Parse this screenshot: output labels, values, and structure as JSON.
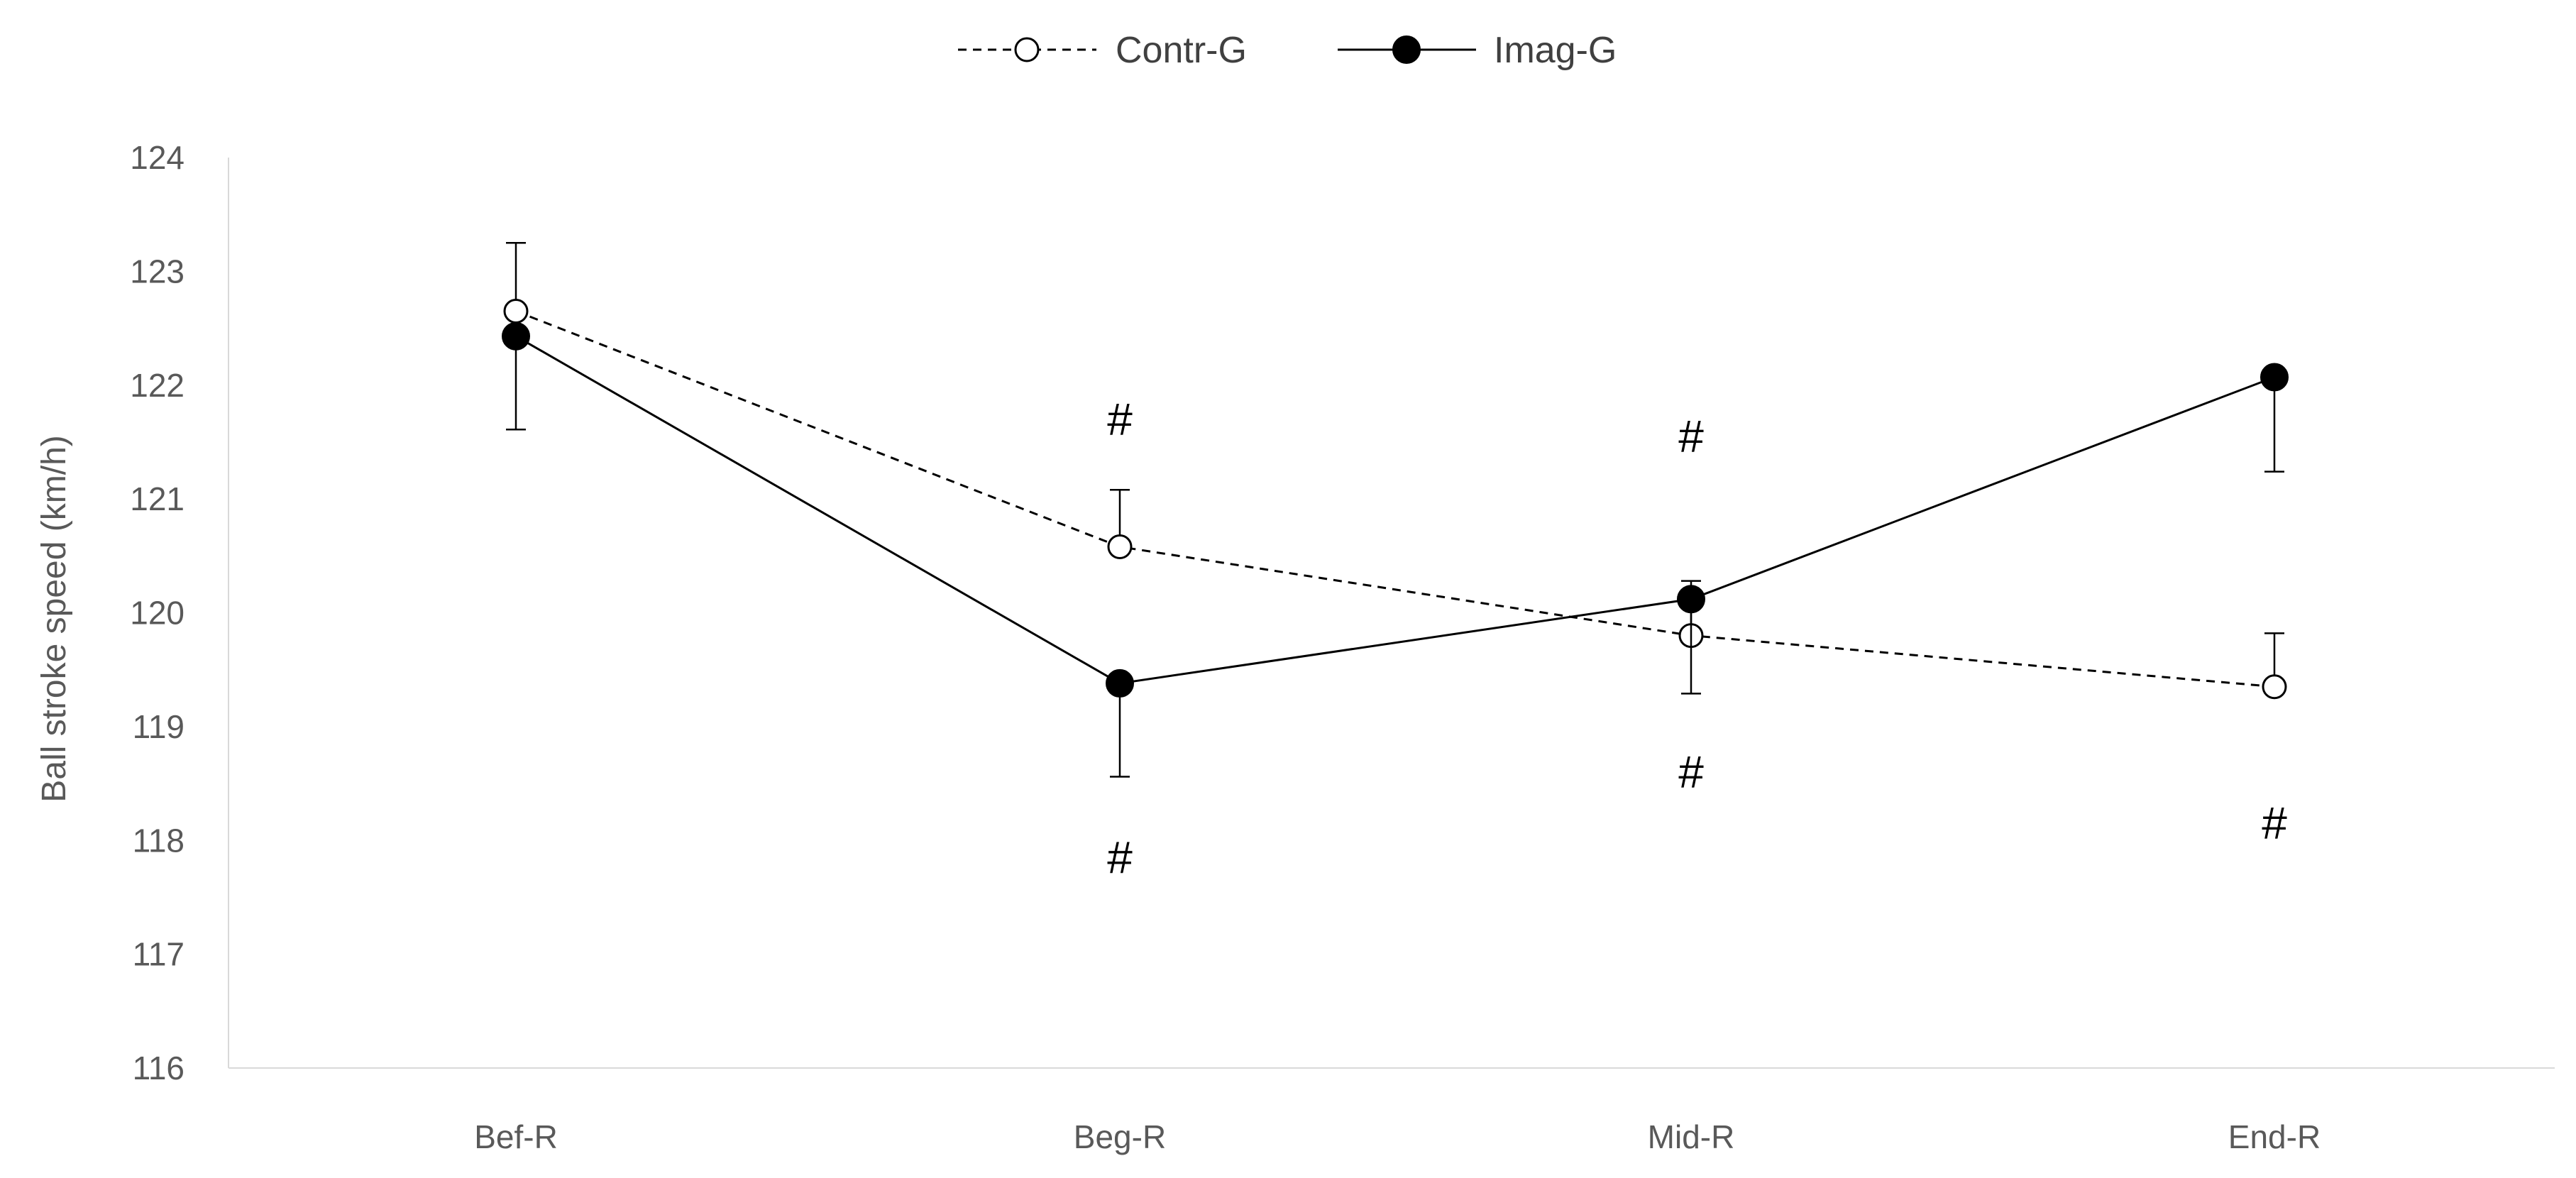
{
  "chart_data": {
    "type": "line",
    "ylabel": "Ball stroke speed (km/h)",
    "xlabel": "",
    "categories": [
      "Bef-R",
      "Beg-R",
      "Mid-R",
      "End-R"
    ],
    "ylim": [
      116,
      124
    ],
    "yticks": [
      116,
      117,
      118,
      119,
      120,
      121,
      122,
      123,
      124
    ],
    "grid": false,
    "legend_position": "top",
    "series": [
      {
        "name": "Contr-G",
        "values": [
          122.65,
          120.58,
          119.8,
          119.35
        ],
        "error": [
          0.6,
          0.5,
          0.48,
          0.47
        ],
        "error_direction": "up",
        "style": "dashed",
        "marker": "open-circle",
        "color": "#000000"
      },
      {
        "name": "Imag-G",
        "values": [
          122.43,
          119.38,
          120.12,
          122.07
        ],
        "error": [
          0.82,
          0.82,
          0.83,
          0.83
        ],
        "error_direction": "down",
        "style": "solid",
        "marker": "filled-circle",
        "color": "#000000"
      }
    ],
    "annotations": [
      {
        "text": "#",
        "x": "Beg-R",
        "y": 121.7
      },
      {
        "text": "#",
        "x": "Beg-R",
        "y": 117.85
      },
      {
        "text": "#",
        "x": "Mid-R",
        "y": 121.55
      },
      {
        "text": "#",
        "x": "Mid-R",
        "y": 118.6
      },
      {
        "text": "#",
        "x": "End-R",
        "y": 118.15
      }
    ]
  }
}
